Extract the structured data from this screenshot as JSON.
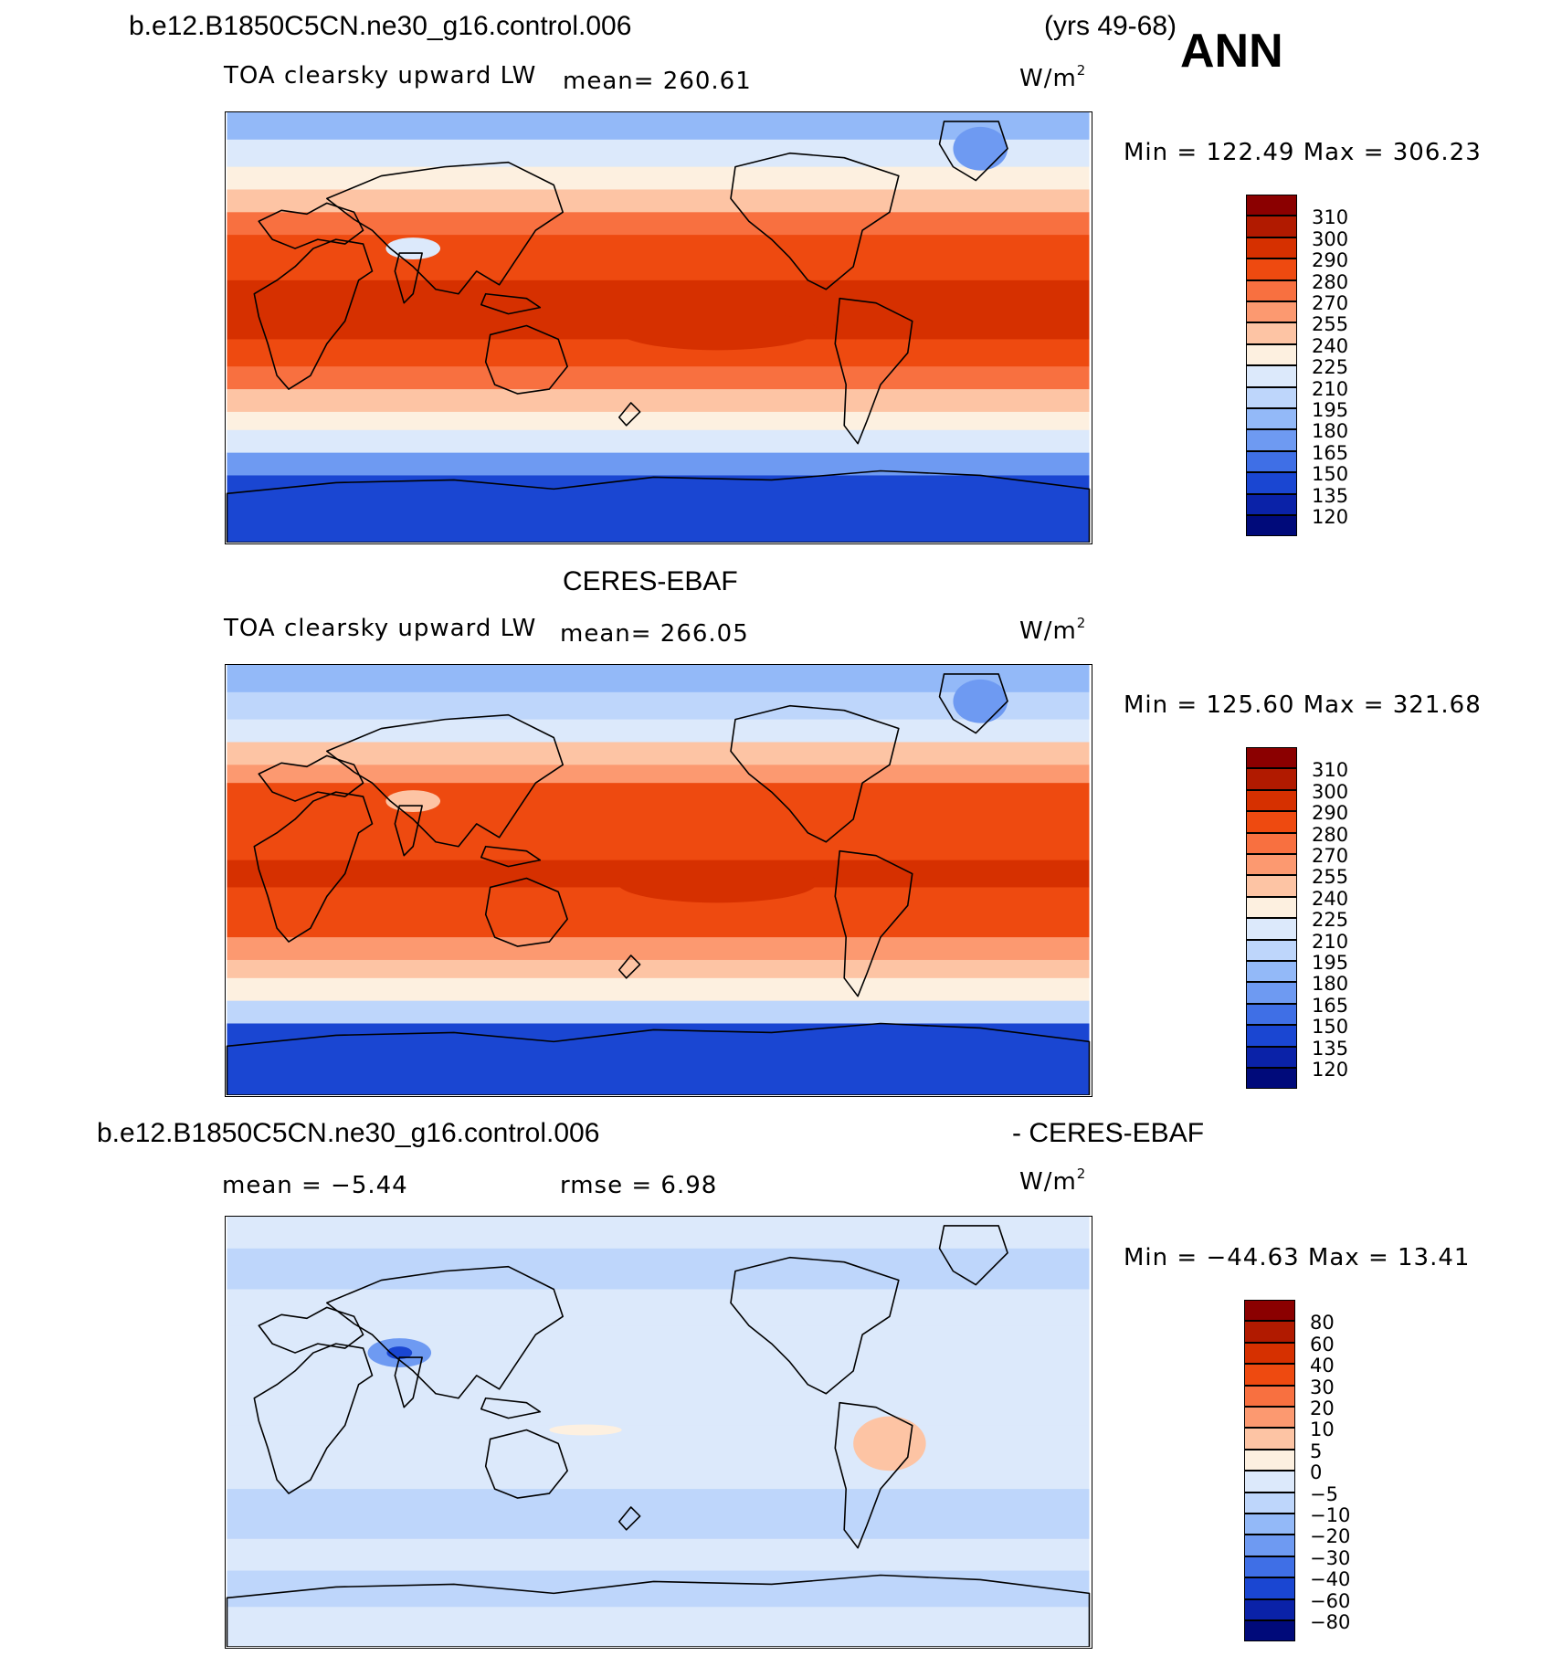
{
  "header": {
    "case_name": "b.e12.B1850C5CN.ne30_g16.control.006",
    "years": "(yrs 49-68)",
    "season": "ANN"
  },
  "panels": [
    {
      "id": "model",
      "title": "",
      "variable": "TOA clearsky upward LW",
      "mean_label": "mean= 260.61",
      "units_base": "W/m",
      "units_exp": "2",
      "minmax": "Min = 122.49 Max = 306.23",
      "palette": "model"
    },
    {
      "id": "obs",
      "title": "CERES-EBAF",
      "variable": "TOA clearsky upward LW",
      "mean_label": "mean= 266.05",
      "units_base": "W/m",
      "units_exp": "2",
      "minmax": "Min = 125.60 Max = 321.68",
      "palette": "model"
    },
    {
      "id": "diff",
      "title_left": "b.e12.B1850C5CN.ne30_g16.control.006",
      "title_right": "- CERES-EBAF",
      "mean_label": "mean =   −5.44",
      "rmse_label": "rmse =    6.98",
      "units_base": "W/m",
      "units_exp": "2",
      "minmax": "Min = −44.63 Max =   13.41",
      "palette": "diff"
    }
  ],
  "chart_data": [
    {
      "type": "heatmap",
      "title": "TOA clearsky upward LW",
      "subtitle": "b.e12.B1850C5CN.ne30_g16.control.006 (yrs 49-68) ANN",
      "units": "W/m2",
      "mean": 260.61,
      "min": 122.49,
      "max": 306.23,
      "colorbar_levels": [
        310,
        300,
        290,
        280,
        270,
        255,
        240,
        225,
        210,
        195,
        180,
        165,
        150,
        135,
        120
      ],
      "colorbar_colors": [
        "#8b0000",
        "#b11a00",
        "#d63000",
        "#ee4a10",
        "#f87040",
        "#fc9970",
        "#fdc4a4",
        "#fdf0e0",
        "#dce9fb",
        "#bed6fb",
        "#93b9f8",
        "#6e9af2",
        "#3f6fe6",
        "#1a46d2",
        "#0a22a8",
        "#000a7a"
      ]
    },
    {
      "type": "heatmap",
      "title": "TOA clearsky upward LW",
      "subtitle": "CERES-EBAF",
      "units": "W/m2",
      "mean": 266.05,
      "min": 125.6,
      "max": 321.68,
      "colorbar_levels": [
        310,
        300,
        290,
        280,
        270,
        255,
        240,
        225,
        210,
        195,
        180,
        165,
        150,
        135,
        120
      ],
      "colorbar_colors": [
        "#8b0000",
        "#b11a00",
        "#d63000",
        "#ee4a10",
        "#f87040",
        "#fc9970",
        "#fdc4a4",
        "#fdf0e0",
        "#dce9fb",
        "#bed6fb",
        "#93b9f8",
        "#6e9af2",
        "#3f6fe6",
        "#1a46d2",
        "#0a22a8",
        "#000a7a"
      ]
    },
    {
      "type": "heatmap",
      "title": "b.e12.B1850C5CN.ne30_g16.control.006 - CERES-EBAF",
      "units": "W/m2",
      "mean": -5.44,
      "rmse": 6.98,
      "min": -44.63,
      "max": 13.41,
      "colorbar_levels": [
        "80",
        "60",
        "40",
        "30",
        "20",
        "10",
        "5",
        "0",
        "−5",
        "−10",
        "−20",
        "−30",
        "−40",
        "−60",
        "−80"
      ],
      "colorbar_colors": [
        "#8b0000",
        "#b11a00",
        "#d63000",
        "#ee4a10",
        "#f87040",
        "#fc9970",
        "#fdc4a4",
        "#fdf0e0",
        "#dce9fb",
        "#bed6fb",
        "#93b9f8",
        "#6e9af2",
        "#3f6fe6",
        "#1a46d2",
        "#0a22a8",
        "#000a7a"
      ]
    }
  ]
}
